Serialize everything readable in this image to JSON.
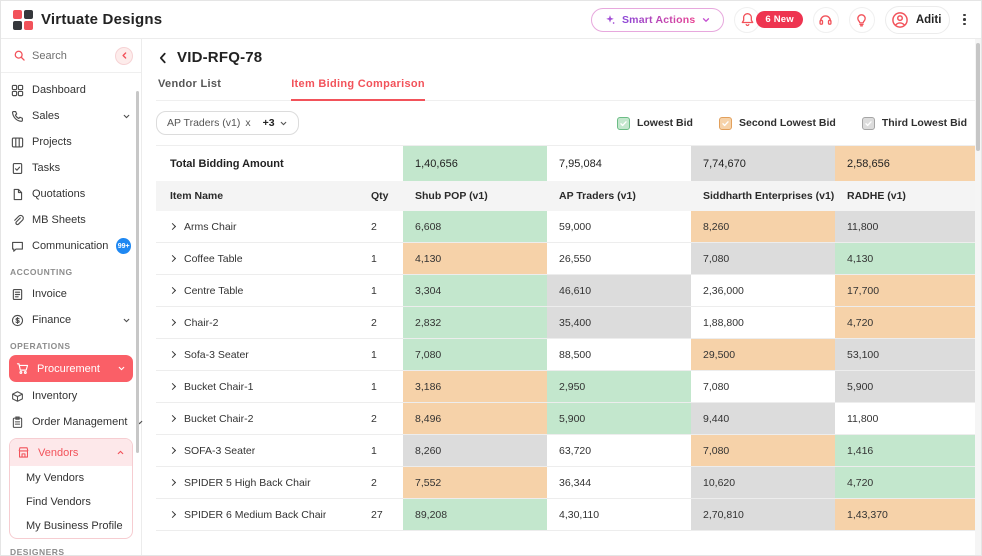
{
  "topbar": {
    "brand": "Virtuate Designs",
    "smart_actions": "Smart Actions",
    "notifications_badge": "6 New",
    "user_name": "Aditi"
  },
  "sidebar": {
    "search_placeholder": "Search",
    "items": {
      "dashboard": "Dashboard",
      "sales": "Sales",
      "projects": "Projects",
      "tasks": "Tasks",
      "quotations": "Quotations",
      "mb_sheets": "MB Sheets",
      "communication": "Communication",
      "communication_badge": "99+",
      "invoice": "Invoice",
      "finance": "Finance",
      "procurement": "Procurement",
      "inventory": "Inventory",
      "order_management": "Order Management",
      "vendors": "Vendors",
      "my_vendors": "My Vendors",
      "find_vendors": "Find Vendors",
      "my_business_profile": "My Business Profile"
    },
    "sections": {
      "accounting": "ACCOUNTING",
      "operations": "OPERATIONS",
      "designers": "DESIGNERS"
    }
  },
  "main": {
    "title": "VID-RFQ-78",
    "tabs": [
      {
        "label": "Vendor List",
        "active": false
      },
      {
        "label": "Item Biding Comparison",
        "active": true
      }
    ],
    "filter": {
      "chip_label": "AP Traders (v1)",
      "remove_label": "x",
      "more_label": "+3"
    },
    "legend": [
      {
        "label": "Lowest Bid",
        "rank": "lowest"
      },
      {
        "label": "Second Lowest Bid",
        "rank": "second"
      },
      {
        "label": "Third Lowest Bid",
        "rank": "third"
      }
    ],
    "table": {
      "columns": [
        "Item Name",
        "Qty",
        "Shub POP (v1)",
        "AP Traders (v1)",
        "Siddharth Enterprises (v1)",
        "RADHE (v1)"
      ],
      "total_label": "Total Bidding Amount",
      "total_values": [
        {
          "text": "1,40,656",
          "rank": "lowest"
        },
        {
          "text": "7,95,084",
          "rank": "none"
        },
        {
          "text": "7,74,670",
          "rank": "third"
        },
        {
          "text": "2,58,656",
          "rank": "second"
        }
      ],
      "rows": [
        {
          "item": "Arms Chair",
          "qty": "2",
          "bids": [
            {
              "text": "6,608",
              "rank": "lowest"
            },
            {
              "text": "59,000",
              "rank": "none"
            },
            {
              "text": "8,260",
              "rank": "second"
            },
            {
              "text": "11,800",
              "rank": "third"
            }
          ]
        },
        {
          "item": "Coffee Table",
          "qty": "1",
          "bids": [
            {
              "text": "4,130",
              "rank": "second"
            },
            {
              "text": "26,550",
              "rank": "none"
            },
            {
              "text": "7,080",
              "rank": "third"
            },
            {
              "text": "4,130",
              "rank": "lowest"
            }
          ]
        },
        {
          "item": "Centre Table",
          "qty": "1",
          "bids": [
            {
              "text": "3,304",
              "rank": "lowest"
            },
            {
              "text": "46,610",
              "rank": "third"
            },
            {
              "text": "2,36,000",
              "rank": "none"
            },
            {
              "text": "17,700",
              "rank": "second"
            }
          ]
        },
        {
          "item": "Chair-2",
          "qty": "2",
          "bids": [
            {
              "text": "2,832",
              "rank": "lowest"
            },
            {
              "text": "35,400",
              "rank": "third"
            },
            {
              "text": "1,88,800",
              "rank": "none"
            },
            {
              "text": "4,720",
              "rank": "second"
            }
          ]
        },
        {
          "item": "Sofa-3 Seater",
          "qty": "1",
          "bids": [
            {
              "text": "7,080",
              "rank": "lowest"
            },
            {
              "text": "88,500",
              "rank": "none"
            },
            {
              "text": "29,500",
              "rank": "second"
            },
            {
              "text": "53,100",
              "rank": "third"
            }
          ]
        },
        {
          "item": "Bucket Chair-1",
          "qty": "1",
          "bids": [
            {
              "text": "3,186",
              "rank": "second"
            },
            {
              "text": "2,950",
              "rank": "lowest"
            },
            {
              "text": "7,080",
              "rank": "none"
            },
            {
              "text": "5,900",
              "rank": "third"
            }
          ]
        },
        {
          "item": "Bucket Chair-2",
          "qty": "2",
          "bids": [
            {
              "text": "8,496",
              "rank": "second"
            },
            {
              "text": "5,900",
              "rank": "lowest"
            },
            {
              "text": "9,440",
              "rank": "third"
            },
            {
              "text": "11,800",
              "rank": "none"
            }
          ]
        },
        {
          "item": "SOFA-3 Seater",
          "qty": "1",
          "bids": [
            {
              "text": "8,260",
              "rank": "third"
            },
            {
              "text": "63,720",
              "rank": "none"
            },
            {
              "text": "7,080",
              "rank": "second"
            },
            {
              "text": "1,416",
              "rank": "lowest"
            }
          ]
        },
        {
          "item": "SPIDER 5 High Back Chair",
          "qty": "2",
          "bids": [
            {
              "text": "7,552",
              "rank": "second"
            },
            {
              "text": "36,344",
              "rank": "none"
            },
            {
              "text": "10,620",
              "rank": "third"
            },
            {
              "text": "4,720",
              "rank": "lowest"
            }
          ]
        },
        {
          "item": "SPIDER 6 Medium Back Chair",
          "qty": "27",
          "bids": [
            {
              "text": "89,208",
              "rank": "lowest"
            },
            {
              "text": "4,30,110",
              "rank": "none"
            },
            {
              "text": "2,70,810",
              "rank": "third"
            },
            {
              "text": "1,43,370",
              "rank": "second"
            }
          ]
        }
      ]
    }
  },
  "colors": {
    "accent": "#f2525a",
    "procurement_bg": "#fa5f67",
    "badge_red": "#ee3450",
    "communication_badge": "#1f88f2",
    "lowest_bid": "#c3e7cd",
    "second_lowest_bid": "#f6d2a9",
    "third_lowest_bid": "#dcdcdc",
    "smart_actions_from": "#8b46d8",
    "smart_actions_to": "#e84393"
  }
}
